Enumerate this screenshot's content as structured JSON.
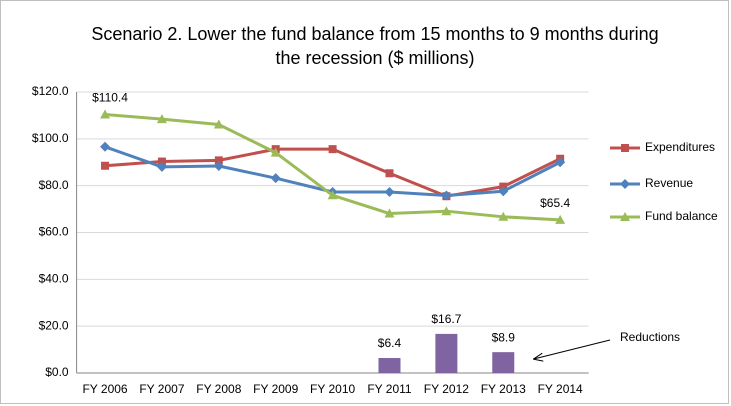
{
  "chart_data": {
    "type": "line",
    "title": "Scenario 2. Lower the fund balance from 15 months to 9 months during the recession ($ millions)",
    "categories": [
      "FY 2006",
      "FY 2007",
      "FY 2008",
      "FY 2009",
      "FY 2010",
      "FY 2011",
      "FY 2012",
      "FY 2013",
      "FY 2014"
    ],
    "series": [
      {
        "name": "Expenditures",
        "type": "line",
        "marker": "square",
        "color": "#c0504d",
        "values": [
          88.5,
          90.3,
          90.8,
          95.6,
          95.6,
          85.3,
          75.5,
          79.6,
          91.5
        ]
      },
      {
        "name": "Revenue",
        "type": "line",
        "marker": "diamond",
        "color": "#4f81bd",
        "values": [
          96.6,
          88.0,
          88.4,
          83.2,
          77.3,
          77.3,
          75.8,
          77.6,
          90.0
        ]
      },
      {
        "name": "Fund balance",
        "type": "line",
        "marker": "triangle",
        "color": "#9bbb59",
        "values": [
          110.4,
          108.4,
          106.1,
          94.1,
          75.9,
          68.1,
          69.1,
          66.7,
          65.4
        ],
        "value_labels": [
          "$110.4",
          null,
          null,
          null,
          null,
          null,
          null,
          null,
          "$65.4"
        ]
      },
      {
        "name": "Reductions",
        "type": "bar",
        "color": "#8064a2",
        "values": [
          null,
          null,
          null,
          null,
          null,
          6.4,
          16.7,
          8.9,
          null
        ],
        "value_labels": [
          null,
          null,
          null,
          null,
          null,
          "$6.4",
          "$16.7",
          "$8.9",
          null
        ]
      }
    ],
    "ylim": [
      0,
      120
    ],
    "yticks": [
      {
        "value": 0,
        "label": "$0.0"
      },
      {
        "value": 20,
        "label": "$20.0"
      },
      {
        "value": 40,
        "label": "$40.0"
      },
      {
        "value": 60,
        "label": "$60.0"
      },
      {
        "value": 80,
        "label": "$80.0"
      },
      {
        "value": 100,
        "label": "$100.0"
      },
      {
        "value": 120,
        "label": "$120.0"
      }
    ],
    "grid": true,
    "legend": "right"
  }
}
